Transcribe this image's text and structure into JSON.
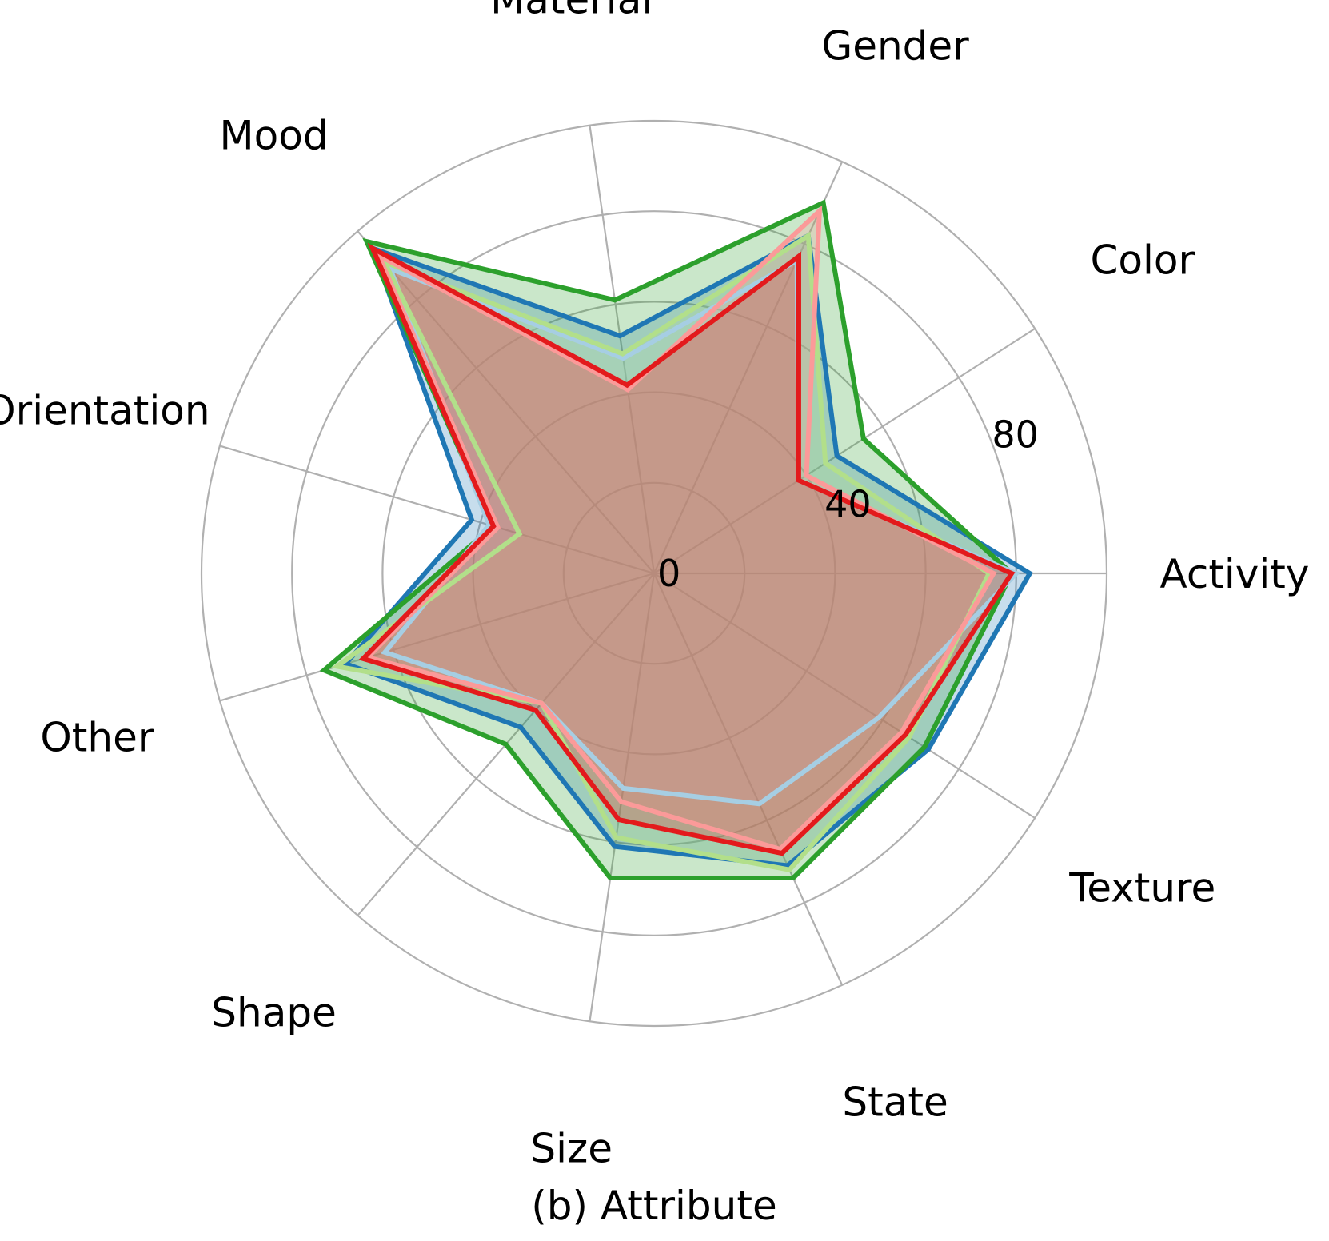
{
  "chart_data": {
    "type": "radar",
    "caption": "(b) Attribute",
    "categories": [
      "Activity",
      "Color",
      "Gender",
      "Material",
      "Mood",
      "Orientation",
      "Other",
      "Shape",
      "Size",
      "State",
      "Texture"
    ],
    "radial_ticks": [
      0,
      40,
      80
    ],
    "radial_max": 100,
    "grid": true,
    "series": [
      {
        "color": "#1f77b4",
        "values": [
          83,
          48,
          82,
          53,
          95,
          42,
          71,
          45,
          61,
          71,
          72
        ]
      },
      {
        "color": "#2ca02c",
        "values": [
          79,
          55,
          90,
          61,
          97,
          37,
          76,
          50,
          68,
          74,
          71
        ]
      },
      {
        "color": "#a6cee3",
        "values": [
          80,
          38,
          76,
          48,
          89,
          38,
          62,
          38,
          48,
          56,
          59
        ]
      },
      {
        "color": "#b2df8a",
        "values": [
          74,
          45,
          82,
          49,
          91,
          31,
          73,
          38,
          59,
          72,
          67
        ]
      },
      {
        "color": "#fb9a99",
        "values": [
          75,
          40,
          88,
          41,
          93,
          36,
          66,
          38,
          51,
          67,
          65
        ]
      },
      {
        "color": "#e31a1c",
        "values": [
          79,
          38,
          77,
          42,
          95,
          37,
          67,
          40,
          55,
          68,
          66
        ]
      }
    ]
  }
}
